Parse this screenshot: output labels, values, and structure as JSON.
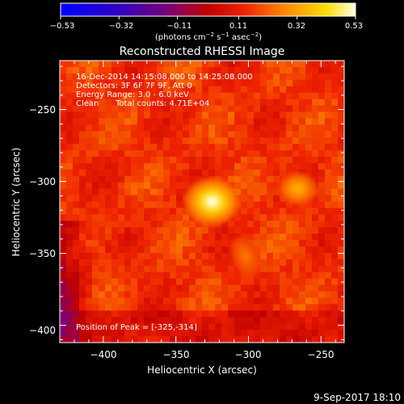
{
  "chart_data": {
    "type": "heatmap",
    "title": "Reconstructed RHESSI Image",
    "xlabel": "Heliocentric X (arcsec)",
    "ylabel": "Heliocentric Y (arcsec)",
    "xlim": [
      -430,
      -234
    ],
    "ylim": [
      -412,
      -216
    ],
    "xticks": [
      -400,
      -350,
      -300,
      -250
    ],
    "xtick_labels": [
      "−400",
      "−350",
      "−300",
      "−250"
    ],
    "yticks": [
      -250,
      -300,
      -350,
      -400
    ],
    "ytick_labels": [
      "−250",
      "−300",
      "−350",
      "−400"
    ],
    "colorbar": {
      "min": -0.53,
      "max": 0.53,
      "ticks": [
        -0.53,
        -0.32,
        -0.11,
        0.11,
        0.32,
        0.53
      ],
      "tick_labels": [
        "−0.53",
        "−0.32",
        "−0.11",
        "0.11",
        "0.32",
        "0.53"
      ],
      "units_main": "(photons cm",
      "units_exp1": "−2",
      "units_mid": " s",
      "units_exp2": "−1",
      "units_end": " asec",
      "units_exp3": "−2",
      "units_close": ")"
    },
    "annotations": {
      "time_range": "16-Dec-2014 14:15:08.000 to 14:25:08.000",
      "detectors": "Detectors: 3F 6F 7F 9F, Att 0",
      "energy_range": "Energy Range: 3.0 - 6.0 keV",
      "method": "Clean",
      "total_counts": "Total counts: 4.71E+04",
      "peak_position": "Position of Peak = [-325,-314]"
    },
    "sources": [
      {
        "x": -325,
        "y": -314,
        "value": 0.53
      },
      {
        "x": -266,
        "y": -305,
        "value": 0.35
      },
      {
        "x": -302,
        "y": -352,
        "value": 0.25
      }
    ],
    "background_level": 0.15
  },
  "footer": {
    "date": "9-Sep-2017 18:10"
  }
}
